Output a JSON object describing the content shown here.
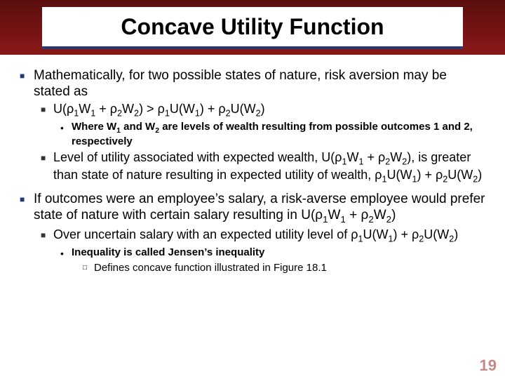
{
  "title": "Concave Utility Function",
  "colors": {
    "header_gradient_top": "#5a0e0e",
    "header_gradient_bottom": "#8a1818",
    "title_underline": "#2a3a6a",
    "bullet_l1": "#1a3a7a",
    "page_num": "#c48a8a"
  },
  "page_number": "19",
  "bullets": {
    "b1": "Mathematically, for two possible states of nature, risk aversion may be stated as",
    "b1a_html": "U(ρ<sub>1</sub>W<sub>1</sub> + ρ<sub>2</sub>W<sub>2</sub>) > ρ<sub>1</sub>U(W<sub>1</sub>) + ρ<sub>2</sub>U(W<sub>2</sub>)",
    "b1a_i_html": "Where W<sub>1</sub> and W<sub>2</sub> are levels of wealth resulting from possible outcomes 1 and 2, respectively",
    "b1b_html": "Level of utility associated with expected wealth, U(ρ<sub>1</sub>W<sub>1</sub> + ρ<sub>2</sub>W<sub>2</sub>), is greater than state of nature resulting in expected utility of wealth, ρ<sub>1</sub>U(W<sub>1</sub>) + ρ<sub>2</sub>U(W<sub>2</sub>)",
    "b2_html": "If outcomes were an employee’s salary, a risk-averse employee would prefer state of nature with certain salary resulting in U(ρ<sub>1</sub>W<sub>1</sub> + ρ<sub>2</sub>W<sub>2</sub>)",
    "b2a_html": "Over uncertain salary with an expected utility level of ρ<sub>1</sub>U(W<sub>1</sub>) + ρ<sub>2</sub>U(W<sub>2</sub>)",
    "b2a_i": "Inequality is called Jensen’s inequality",
    "b2a_i_1": "Defines concave function illustrated in Figure 18.1"
  }
}
